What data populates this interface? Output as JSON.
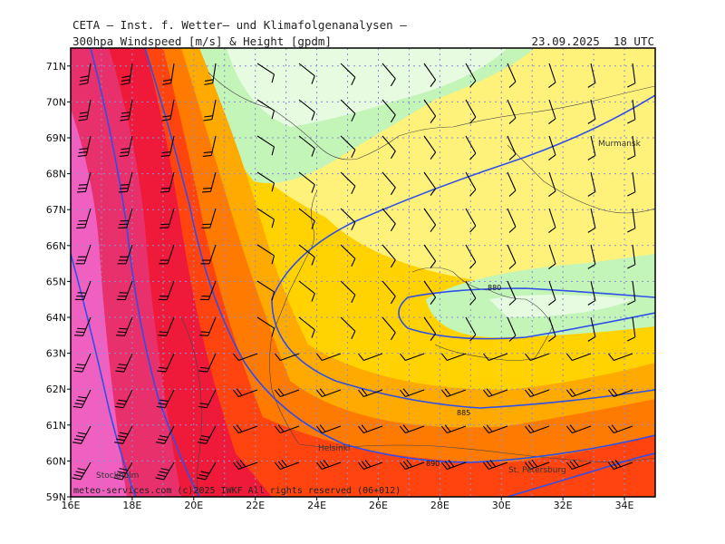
{
  "header": {
    "line1": "CETA — Inst. f. Wetter— und Klimafolgenanalysen —",
    "line2": "300hpa_Windspeed_[m/s]_&_Height_[gpdm]",
    "valid_time": "23.09.2025  18 UTC"
  },
  "map": {
    "lon_range": [
      16,
      35
    ],
    "lat_range": [
      59,
      71.5
    ],
    "lat_ticks": [
      "59N",
      "60N",
      "61N",
      "62N",
      "63N",
      "64N",
      "65N",
      "66N",
      "67N",
      "68N",
      "69N",
      "70N",
      "71N"
    ],
    "lon_ticks": [
      "16E",
      "18E",
      "20E",
      "22E",
      "24E",
      "26E",
      "28E",
      "30E",
      "32E",
      "34E"
    ],
    "gridlines": true,
    "wind_speed_colors": [
      "#ffffff",
      "#e6fbe0",
      "#c3f4b8",
      "#fff27a",
      "#ffd200",
      "#ffaa00",
      "#ff7a00",
      "#ff4410",
      "#ef1a3a",
      "#e8306c",
      "#f060c0"
    ],
    "contour_color": "#2f4fe8",
    "contour_labels": [
      "880",
      "885",
      "890"
    ],
    "cities": [
      "Murmansk",
      "Helsinki",
      "Stockholm",
      "St. Petersburg"
    ],
    "copyright": "meteo-services.com  (c)2025  IWKF  All rights reserved  (06+012)"
  }
}
